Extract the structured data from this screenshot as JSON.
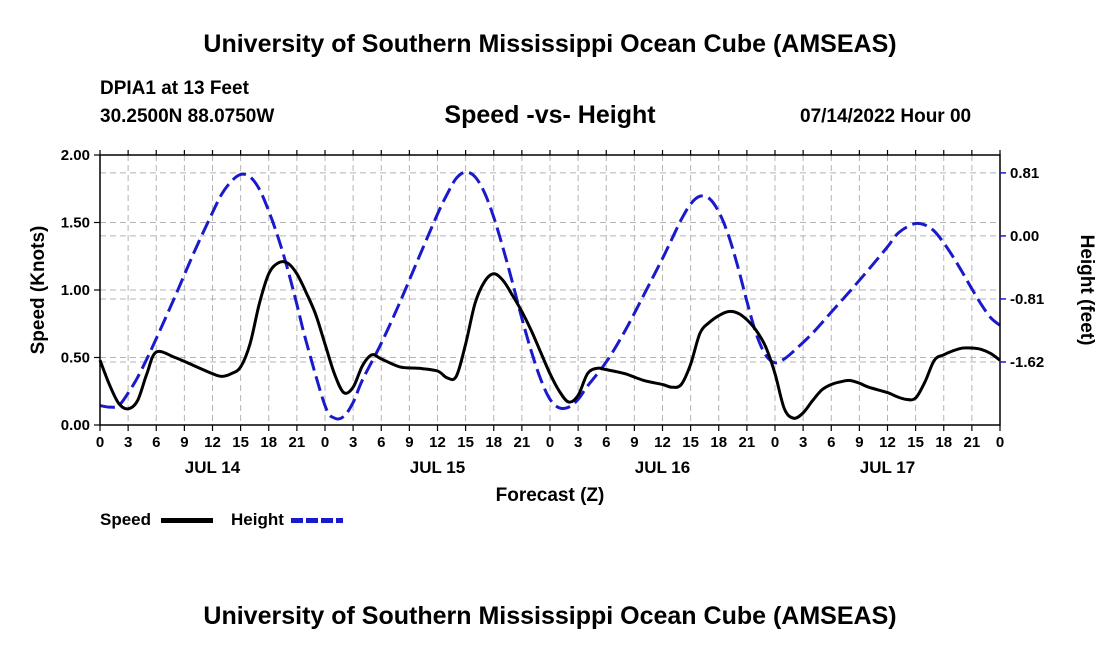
{
  "header": {
    "title": "University of Southern Mississippi Ocean Cube (AMSEAS)",
    "station": "DPIA1 at 13 Feet",
    "coords": "30.2500N  88.0750W",
    "subtitle": "Speed -vs- Height",
    "date": "07/14/2022 Hour 00"
  },
  "footer": {
    "title": "University of Southern Mississippi Ocean Cube (AMSEAS)"
  },
  "legend": {
    "speed_label": "Speed",
    "height_label": "Height"
  },
  "colors": {
    "speed": "#000000",
    "height": "#1a1acc",
    "grid": "#b4b4b4"
  },
  "chart_data": {
    "type": "line",
    "xlabel": "Forecast (Z)",
    "ylabel": "Speed (Knots)",
    "y2label": "Height (feet)",
    "x_range": [
      0,
      96
    ],
    "ylim": [
      0,
      2
    ],
    "y2lim": [
      -2.43,
      1.04
    ],
    "y_ticks": [
      0,
      0.5,
      1,
      1.5,
      2
    ],
    "y_tick_labels": [
      "0.00",
      "0.50",
      "1.00",
      "1.50",
      "2.00"
    ],
    "y2_ticks": [
      0.81,
      0,
      -0.81,
      -1.62
    ],
    "y2_tick_labels": [
      "0.81",
      "0.00",
      "-0.81",
      "-1.62"
    ],
    "x_ticks": [
      0,
      3,
      6,
      9,
      12,
      15,
      18,
      21,
      24,
      27,
      30,
      33,
      36,
      39,
      42,
      45,
      48,
      51,
      54,
      57,
      60,
      63,
      66,
      69,
      72,
      75,
      78,
      81,
      84,
      87,
      90,
      93,
      96
    ],
    "x_tick_labels": [
      "0",
      "3",
      "6",
      "9",
      "12",
      "15",
      "18",
      "21",
      "0",
      "3",
      "6",
      "9",
      "12",
      "15",
      "18",
      "21",
      "0",
      "3",
      "6",
      "9",
      "12",
      "15",
      "18",
      "21",
      "0",
      "3",
      "6",
      "9",
      "12",
      "15",
      "18",
      "21",
      "0"
    ],
    "day_labels": [
      {
        "label": "JUL 14",
        "x": 12
      },
      {
        "label": "JUL 15",
        "x": 36
      },
      {
        "label": "JUL 16",
        "x": 60
      },
      {
        "label": "JUL 17",
        "x": 84
      }
    ],
    "series": [
      {
        "name": "Speed",
        "axis": "left",
        "style": "solid",
        "x": [
          0,
          1,
          2,
          3,
          4,
          5,
          6,
          8,
          10,
          12,
          13,
          14,
          15,
          16,
          17,
          18,
          19,
          20,
          21,
          22,
          23,
          24,
          25,
          26,
          27,
          28,
          29,
          30,
          32,
          34,
          36,
          37,
          38,
          39,
          40,
          41,
          42,
          43,
          44,
          45,
          46,
          47,
          48,
          49,
          50,
          51,
          52,
          53,
          54,
          56,
          58,
          60,
          61,
          62,
          63,
          64,
          65,
          66,
          67,
          68,
          69,
          70,
          71,
          72,
          73,
          74,
          75,
          76,
          77,
          78,
          79,
          80,
          81,
          82,
          84,
          85,
          86,
          87,
          88,
          89,
          90,
          91,
          92,
          93,
          94,
          95,
          96
        ],
        "values": [
          0.48,
          0.3,
          0.16,
          0.12,
          0.18,
          0.38,
          0.54,
          0.5,
          0.44,
          0.38,
          0.36,
          0.38,
          0.43,
          0.6,
          0.9,
          1.12,
          1.2,
          1.2,
          1.12,
          0.98,
          0.82,
          0.6,
          0.38,
          0.24,
          0.28,
          0.44,
          0.52,
          0.49,
          0.43,
          0.42,
          0.4,
          0.35,
          0.36,
          0.6,
          0.9,
          1.06,
          1.12,
          1.07,
          0.96,
          0.84,
          0.7,
          0.54,
          0.38,
          0.25,
          0.17,
          0.22,
          0.38,
          0.42,
          0.41,
          0.38,
          0.33,
          0.3,
          0.28,
          0.3,
          0.45,
          0.68,
          0.76,
          0.81,
          0.84,
          0.83,
          0.78,
          0.7,
          0.58,
          0.38,
          0.12,
          0.05,
          0.09,
          0.18,
          0.26,
          0.3,
          0.32,
          0.33,
          0.31,
          0.28,
          0.24,
          0.21,
          0.19,
          0.2,
          0.32,
          0.48,
          0.52,
          0.55,
          0.57,
          0.57,
          0.56,
          0.53,
          0.48
        ]
      },
      {
        "name": "Height",
        "axis": "right",
        "style": "dashed",
        "x": [
          0,
          1,
          2,
          3,
          4,
          5,
          6,
          8,
          10,
          12,
          13,
          14,
          15,
          16,
          17,
          18,
          19,
          20,
          21,
          22,
          24,
          25,
          26,
          27,
          28,
          30,
          32,
          34,
          36,
          37,
          38,
          39,
          40,
          41,
          42,
          43,
          44,
          45,
          46,
          47,
          48,
          49,
          50,
          51,
          52,
          54,
          56,
          58,
          60,
          61,
          62,
          63,
          64,
          65,
          66,
          67,
          68,
          69,
          70,
          71,
          72,
          73,
          74,
          76,
          78,
          80,
          82,
          84,
          85,
          86,
          87,
          88,
          89,
          90,
          91,
          92,
          93,
          94,
          95,
          96
        ],
        "values": [
          -2.18,
          -2.2,
          -2.18,
          -2.02,
          -1.82,
          -1.58,
          -1.32,
          -0.78,
          -0.22,
          0.3,
          0.54,
          0.7,
          0.79,
          0.76,
          0.6,
          0.32,
          -0.02,
          -0.42,
          -0.88,
          -1.36,
          -2.18,
          -2.34,
          -2.32,
          -2.14,
          -1.85,
          -1.38,
          -0.85,
          -0.28,
          0.28,
          0.53,
          0.74,
          0.82,
          0.76,
          0.56,
          0.24,
          -0.16,
          -0.6,
          -1.06,
          -1.48,
          -1.84,
          -2.1,
          -2.21,
          -2.2,
          -2.1,
          -1.93,
          -1.62,
          -1.22,
          -0.76,
          -0.29,
          -0.04,
          0.21,
          0.41,
          0.51,
          0.48,
          0.31,
          0.02,
          -0.38,
          -0.84,
          -1.26,
          -1.53,
          -1.63,
          -1.58,
          -1.48,
          -1.25,
          -0.98,
          -0.71,
          -0.43,
          -0.14,
          0.02,
          0.11,
          0.16,
          0.14,
          0.06,
          -0.09,
          -0.27,
          -0.47,
          -0.68,
          -0.88,
          -1.05,
          -1.15
        ]
      }
    ]
  }
}
